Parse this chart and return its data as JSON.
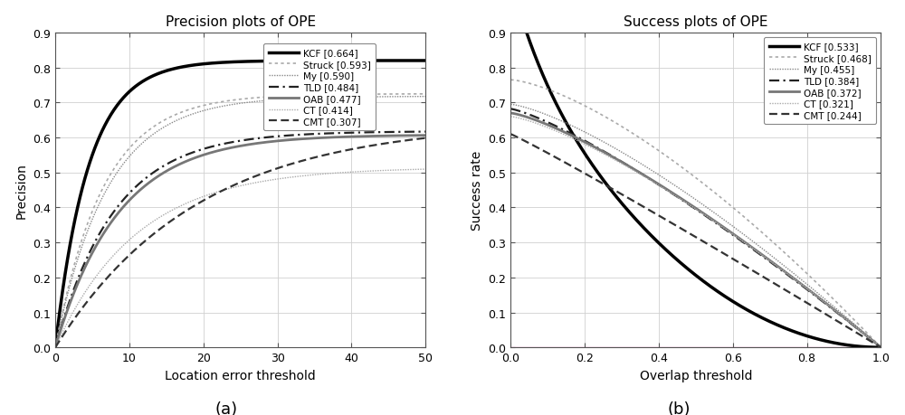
{
  "title_left": "Precision plots of OPE",
  "title_right": "Success plots of OPE",
  "xlabel_left": "Location error threshold",
  "ylabel_left": "Precision",
  "xlabel_right": "Overlap threshold",
  "ylabel_right": "Success rate",
  "caption_left": "(a)",
  "caption_right": "(b)",
  "xlim_left": [
    0,
    50
  ],
  "ylim_left": [
    0,
    0.9
  ],
  "xlim_right": [
    0,
    1
  ],
  "ylim_right": [
    0,
    0.9
  ],
  "xticks_left": [
    0,
    10,
    20,
    30,
    40,
    50
  ],
  "yticks_left": [
    0,
    0.1,
    0.2,
    0.3,
    0.4,
    0.5,
    0.6,
    0.7,
    0.8,
    0.9
  ],
  "xticks_right": [
    0,
    0.2,
    0.4,
    0.6,
    0.8,
    1.0
  ],
  "yticks_right": [
    0,
    0.1,
    0.2,
    0.3,
    0.4,
    0.5,
    0.6,
    0.7,
    0.8,
    0.9
  ],
  "legend_left": [
    {
      "label": "KCF [0.664]",
      "color": "#000000",
      "lw": 2.5,
      "dashes": null
    },
    {
      "label": "Struck [0.593]",
      "color": "#aaaaaa",
      "lw": 1.2,
      "dashes": [
        2,
        2
      ]
    },
    {
      "label": "My [0.590]",
      "color": "#888888",
      "lw": 1.0,
      "dashes": [
        1,
        1
      ]
    },
    {
      "label": "TLD [0.484]",
      "color": "#222222",
      "lw": 1.6,
      "dashes": [
        5,
        2,
        1,
        2
      ]
    },
    {
      "label": "OAB [0.477]",
      "color": "#777777",
      "lw": 2.0,
      "dashes": null
    },
    {
      "label": "CT [0.414]",
      "color": "#aaaaaa",
      "lw": 1.0,
      "dashes": [
        1,
        1
      ]
    },
    {
      "label": "CMT [0.307]",
      "color": "#333333",
      "lw": 1.6,
      "dashes": [
        4,
        2
      ]
    }
  ],
  "legend_right": [
    {
      "label": "KCF [0.533]",
      "color": "#000000",
      "lw": 2.5,
      "dashes": null
    },
    {
      "label": "Struck [0.468]",
      "color": "#aaaaaa",
      "lw": 1.2,
      "dashes": [
        2,
        2
      ]
    },
    {
      "label": "My [0.455]",
      "color": "#888888",
      "lw": 1.0,
      "dashes": [
        1,
        1
      ]
    },
    {
      "label": "TLD [0.384]",
      "color": "#222222",
      "lw": 1.6,
      "dashes": [
        5,
        2,
        1,
        2
      ]
    },
    {
      "label": "OAB [0.372]",
      "color": "#777777",
      "lw": 2.0,
      "dashes": null
    },
    {
      "label": "CT [0.321]",
      "color": "#aaaaaa",
      "lw": 1.0,
      "dashes": [
        1,
        1
      ]
    },
    {
      "label": "CMT [0.244]",
      "color": "#333333",
      "lw": 1.6,
      "dashes": [
        4,
        2
      ]
    }
  ],
  "background_color": "#ffffff",
  "grid_color": "#d0d0d0"
}
